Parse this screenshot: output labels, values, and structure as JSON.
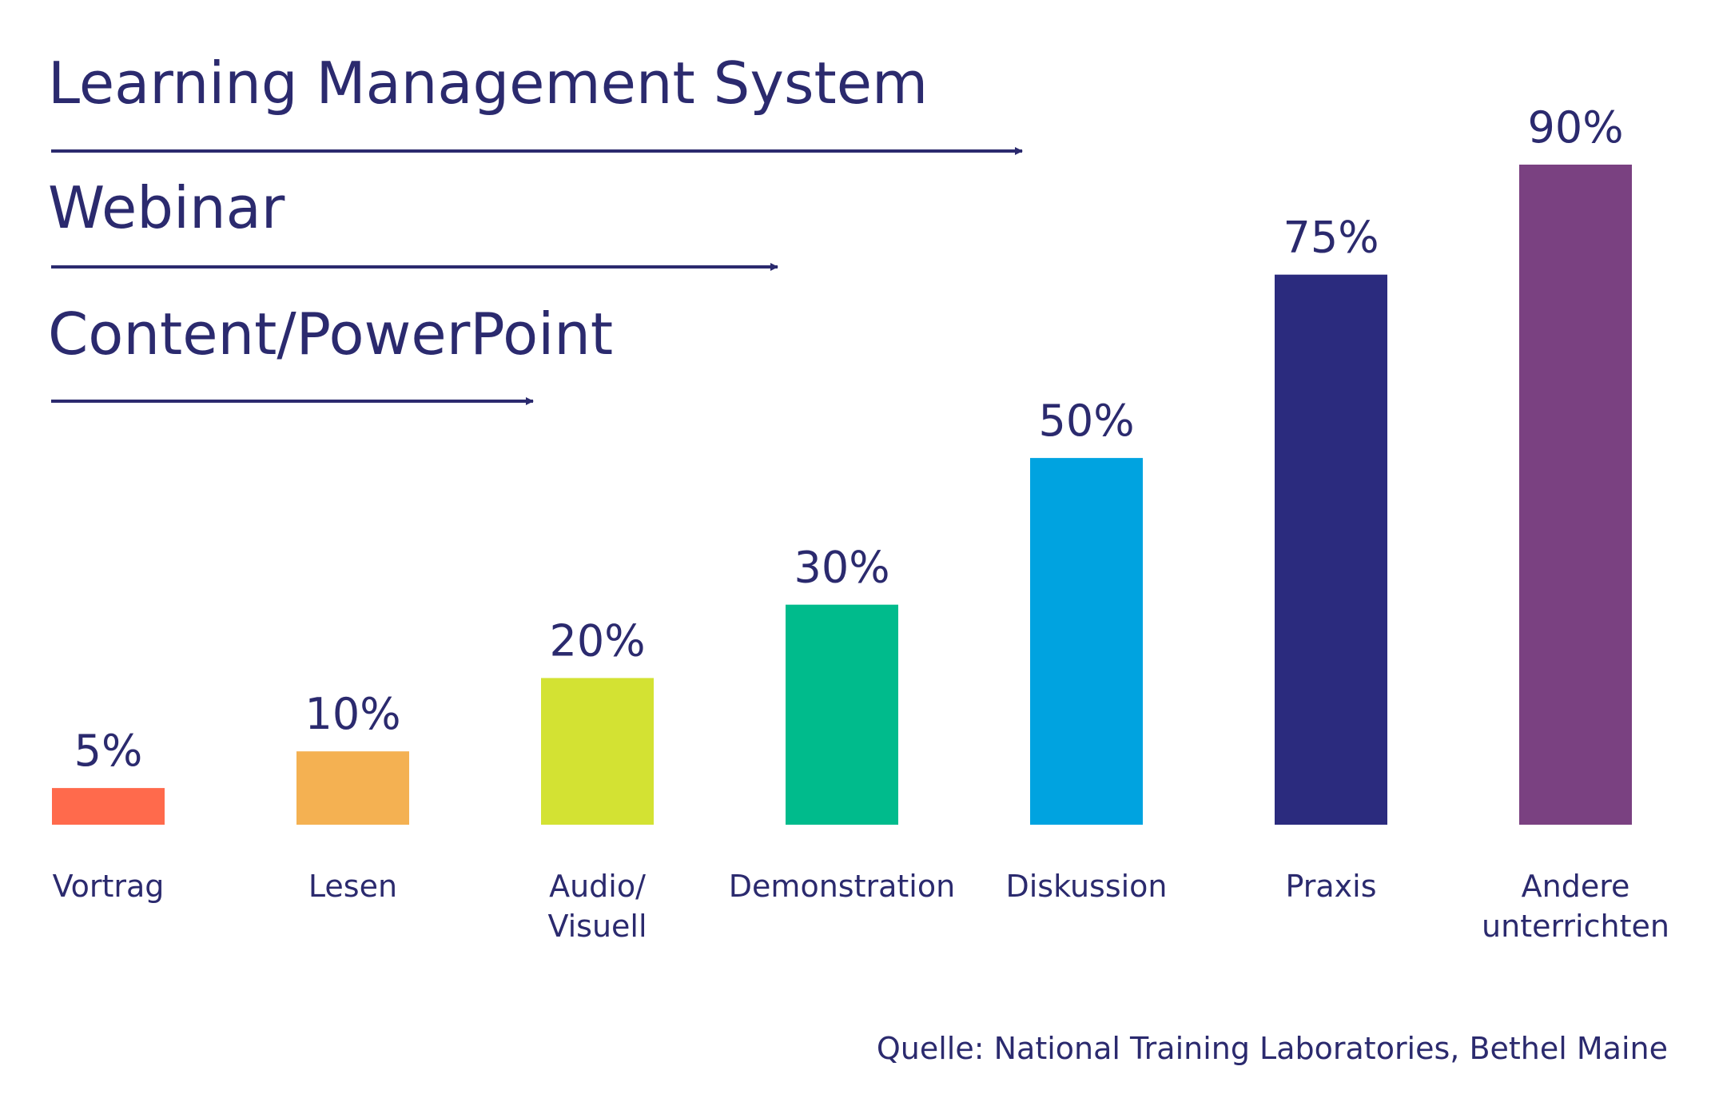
{
  "arrows": [
    {
      "label": "Learning Management System",
      "reach": "Diskussion"
    },
    {
      "label": "Webinar",
      "reach": "Demonstration"
    },
    {
      "label": "Content/PowerPoint",
      "reach": "Audio/Visuell"
    }
  ],
  "source": "Quelle: National Training Laboratories, Bethel Maine",
  "colors": {
    "text": "#2b2a6e",
    "arrow": "#2b2a6e"
  },
  "chart_data": {
    "type": "bar",
    "categories": [
      [
        "Vortrag"
      ],
      [
        "Lesen"
      ],
      [
        "Audio/",
        "Visuell"
      ],
      [
        "Demonstration"
      ],
      [
        "Diskussion"
      ],
      [
        "Praxis"
      ],
      [
        "Andere",
        "unterrichten"
      ]
    ],
    "values": [
      5,
      10,
      20,
      30,
      50,
      75,
      90
    ],
    "value_labels": [
      "5%",
      "10%",
      "20%",
      "30%",
      "50%",
      "75%",
      "90%"
    ],
    "bar_colors": [
      "#ff6a4c",
      "#f4b152",
      "#d3e233",
      "#00bb8c",
      "#00a3e0",
      "#2b2b7e",
      "#7a4181"
    ],
    "ylim": [
      0,
      90
    ],
    "grid": false,
    "legend": "none"
  }
}
